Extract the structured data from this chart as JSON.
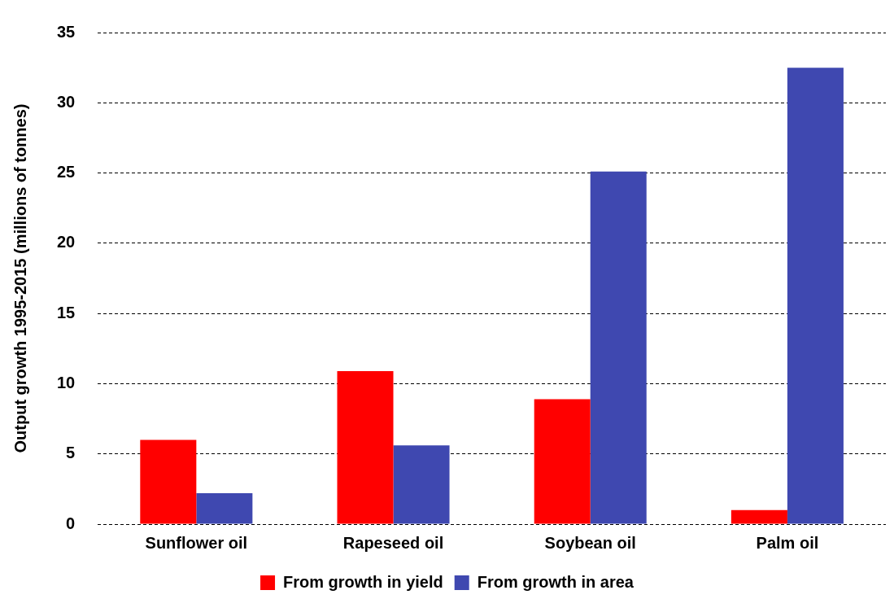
{
  "chart_data": {
    "type": "bar",
    "ylabel": "Output growth 1995-2015 (millions of tonnes)",
    "categories": [
      "Sunflower oil",
      "Rapeseed oil",
      "Soybean oil",
      "Palm oil"
    ],
    "series": [
      {
        "name": "From growth in yield",
        "color": "#ff0000",
        "values": [
          6.0,
          10.9,
          8.9,
          1.0
        ]
      },
      {
        "name": "From growth in area",
        "color": "#3f48b0",
        "values": [
          2.2,
          5.6,
          25.1,
          32.5
        ]
      }
    ],
    "ylim": [
      0,
      35
    ],
    "yticks": [
      0,
      5,
      10,
      15,
      20,
      25,
      30,
      35
    ],
    "grid": "y",
    "line_style": "dashed",
    "legend": "bottom"
  }
}
